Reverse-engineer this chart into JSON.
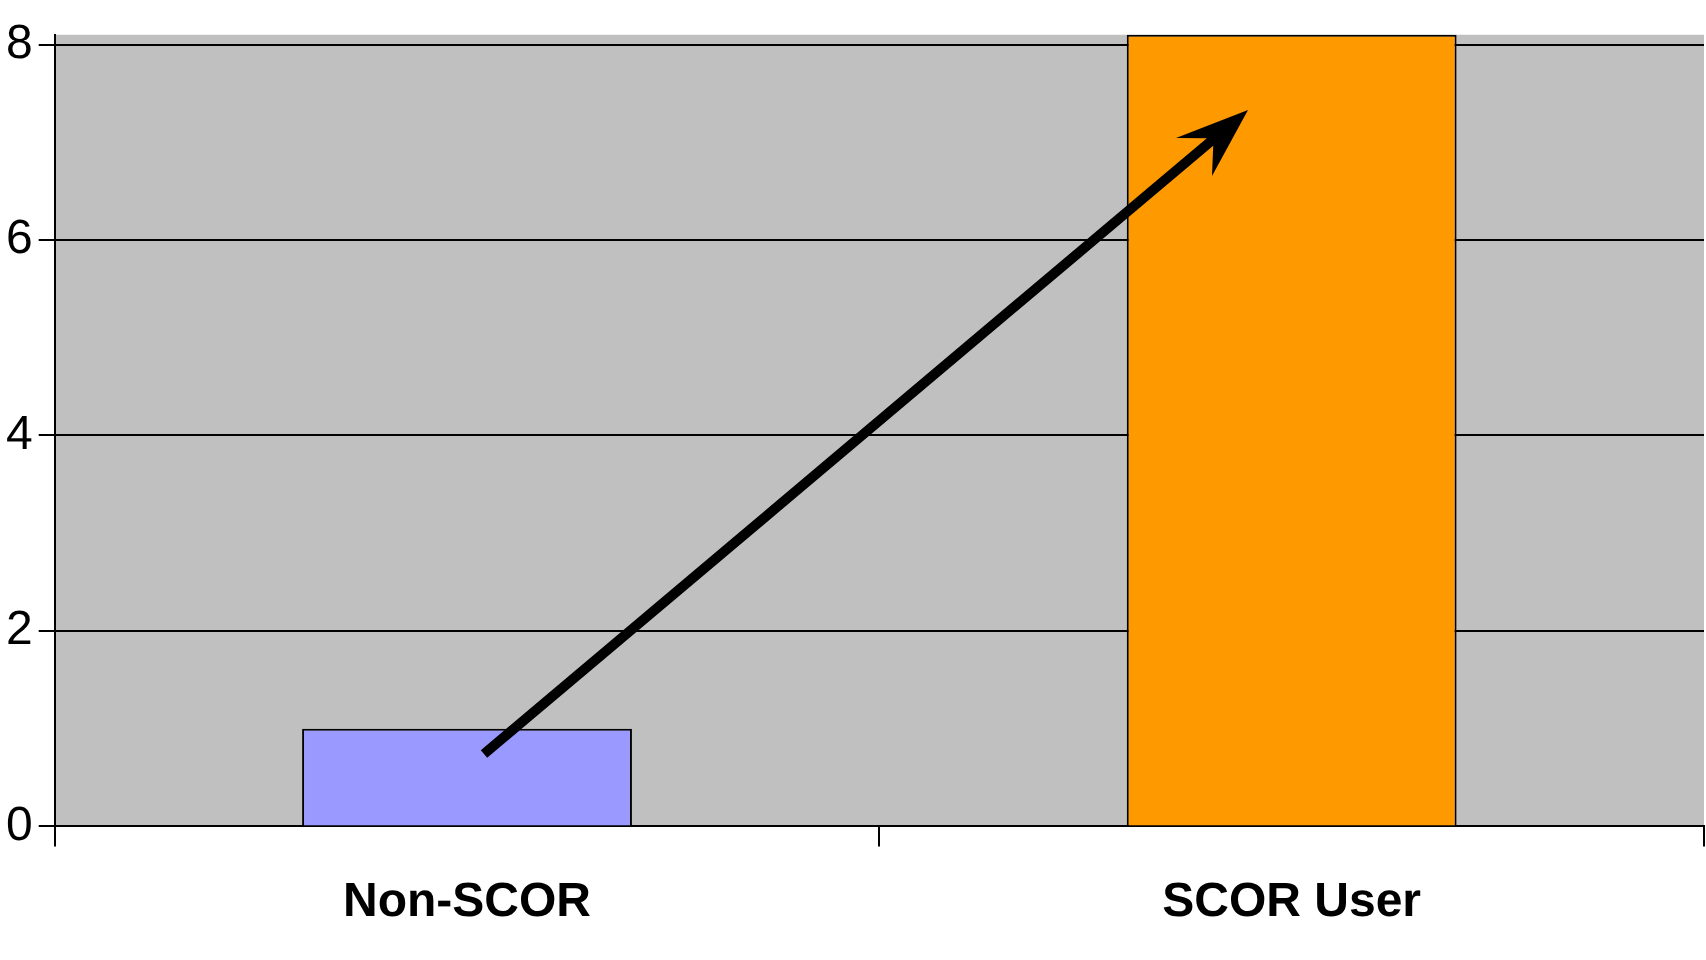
{
  "chart_data": {
    "type": "bar",
    "categories": [
      "Non-SCOR",
      "SCOR User"
    ],
    "colors": [
      "#9999ff",
      "#ff9900"
    ],
    "values": [
      1,
      8.1
    ],
    "ylim": [
      0,
      8.1
    ],
    "yticks": [
      0,
      2,
      4,
      6,
      8
    ],
    "grid": "y",
    "legend": false
  }
}
